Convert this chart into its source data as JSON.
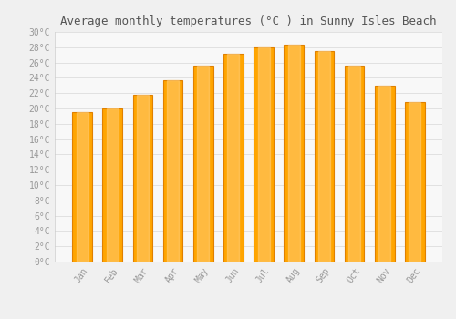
{
  "title": "Average monthly temperatures (°C ) in Sunny Isles Beach",
  "months": [
    "Jan",
    "Feb",
    "Mar",
    "Apr",
    "May",
    "Jun",
    "Jul",
    "Aug",
    "Sep",
    "Oct",
    "Nov",
    "Dec"
  ],
  "values": [
    19.5,
    20.0,
    21.8,
    23.7,
    25.6,
    27.2,
    28.0,
    28.3,
    27.5,
    25.6,
    23.0,
    20.8
  ],
  "bar_color": "#FFA500",
  "bar_edge_color": "#E08000",
  "ylim": [
    0,
    30
  ],
  "ytick_step": 2,
  "background_color": "#f0f0f0",
  "plot_bg_color": "#f8f8f8",
  "grid_color": "#dddddd",
  "title_fontsize": 9,
  "tick_fontsize": 7,
  "tick_color": "#999999",
  "title_color": "#555555",
  "title_font": "monospace",
  "bar_width": 0.65
}
